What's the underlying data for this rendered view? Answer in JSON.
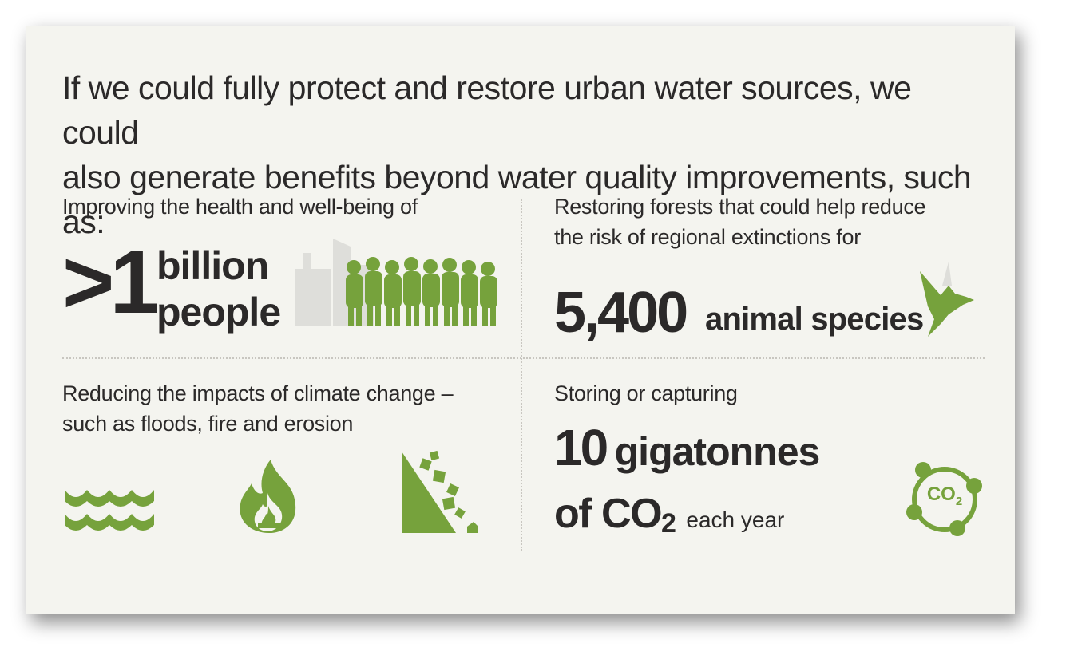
{
  "headline": {
    "line1": "If we could fully protect and restore urban water sources, we could",
    "line2": "also generate benefits beyond water quality improvements, such as:"
  },
  "people": {
    "lead": "Improving the health and well-being of",
    "number": ">1",
    "unit_line1": "billion",
    "unit_line2": "people",
    "icon": "crowd-icon"
  },
  "species": {
    "lead_line1": "Restoring forests that could help reduce",
    "lead_line2": "the risk of regional extinctions for",
    "number": "5,400",
    "unit": "animal species",
    "icon": "bird-icon"
  },
  "climate": {
    "lead_line1": "Reducing the impacts of climate change –",
    "lead_line2": "such as floods, fire and erosion",
    "icons": [
      "flood-waves-icon",
      "fire-icon",
      "erosion-icon"
    ]
  },
  "carbon": {
    "lead": "Storing or capturing",
    "number": "10",
    "unit": "gigatonnes",
    "of_co": "of CO",
    "sub": "2",
    "tail": "each year",
    "icon_label": "CO",
    "icon_sub": "2",
    "icon": "co2-cycle-icon"
  },
  "colors": {
    "accent_green": "#76a23c",
    "text_dark": "#2b2929",
    "background": "#f4f4ef"
  }
}
